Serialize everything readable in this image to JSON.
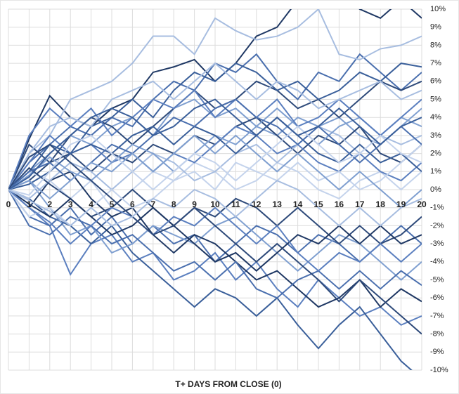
{
  "chart_data": {
    "type": "line",
    "x_label": "T+ DAYS FROM CLOSE (0)",
    "x": [
      0,
      1,
      2,
      3,
      4,
      5,
      6,
      7,
      8,
      9,
      10,
      11,
      12,
      13,
      14,
      15,
      16,
      17,
      18,
      19,
      20
    ],
    "xlim": [
      0,
      20
    ],
    "xticks": [
      0,
      1,
      2,
      3,
      4,
      5,
      6,
      7,
      8,
      9,
      10,
      11,
      12,
      13,
      14,
      15,
      16,
      17,
      18,
      19,
      20
    ],
    "ylim": [
      -10,
      10
    ],
    "yticks": [
      {
        "value": 10,
        "label": "10%"
      },
      {
        "value": 9,
        "label": "9%"
      },
      {
        "value": 8,
        "label": "8%"
      },
      {
        "value": 7,
        "label": "7%"
      },
      {
        "value": 6,
        "label": "6%"
      },
      {
        "value": 5,
        "label": "5%"
      },
      {
        "value": 4,
        "label": "4%"
      },
      {
        "value": 3,
        "label": "3%"
      },
      {
        "value": 2,
        "label": "2%"
      },
      {
        "value": 1,
        "label": "1%"
      },
      {
        "value": 0,
        "label": "0%"
      },
      {
        "value": -1,
        "label": "-1%"
      },
      {
        "value": -2,
        "label": "-2%"
      },
      {
        "value": -3,
        "label": "-3%"
      },
      {
        "value": -4,
        "label": "-4%"
      },
      {
        "value": -5,
        "label": "-5%"
      },
      {
        "value": -6,
        "label": "-6%"
      },
      {
        "value": -7,
        "label": "-7%"
      },
      {
        "value": -8,
        "label": "-8%"
      },
      {
        "value": -9,
        "label": "-9%"
      },
      {
        "value": -10,
        "label": "-10%"
      }
    ],
    "grid": true,
    "series": [
      {
        "color": "#1f3864",
        "values": [
          0,
          2.8,
          5.2,
          4,
          3.5,
          4.5,
          5,
          6.5,
          6.8,
          7.2,
          6,
          7,
          8.5,
          9,
          10.5,
          12,
          11,
          10,
          9.5,
          10.5,
          9.5
        ]
      },
      {
        "color": "#4a6fae",
        "values": [
          0,
          1.5,
          2.5,
          3.5,
          3,
          4,
          3.5,
          5,
          6,
          5.5,
          7,
          6.5,
          7.5,
          6,
          5,
          6.5,
          6,
          7.5,
          6.5,
          5.5,
          6.5
        ]
      },
      {
        "color": "#7f9fd0",
        "values": [
          0,
          1,
          2,
          3,
          2.5,
          3.5,
          4,
          3,
          4.5,
          5,
          4,
          4.5,
          3.5,
          3,
          4,
          3.5,
          4,
          3,
          2.5,
          3.5,
          4.5
        ]
      },
      {
        "color": "#a7bde0",
        "values": [
          0,
          2,
          3,
          5,
          5.5,
          6,
          7,
          8.5,
          8.5,
          7.5,
          9.5,
          8.8,
          8.3,
          8.5,
          9,
          10,
          7.5,
          7.2,
          7.8,
          8,
          8.5
        ]
      },
      {
        "color": "#2e4a7a",
        "values": [
          0,
          0.5,
          1.5,
          2,
          1,
          2,
          1.5,
          2.5,
          2,
          3,
          2.5,
          3.5,
          4,
          3,
          2,
          3,
          2.5,
          3.5,
          2,
          1.5,
          2.5
        ]
      },
      {
        "color": "#5b7fbf",
        "values": [
          0,
          -1,
          -2,
          -4.7,
          -3,
          -2.5,
          -4,
          -3.5,
          -5,
          -4.5,
          -3.5,
          -5,
          -4,
          -5.5,
          -6.5,
          -5,
          -6,
          -7,
          -6.5,
          -7.5,
          -7
        ]
      },
      {
        "color": "#3a5f9a",
        "values": [
          0,
          -0.5,
          -1.5,
          -2,
          -3,
          -2,
          -3.5,
          -4.5,
          -5.5,
          -6.5,
          -5.5,
          -6,
          -7,
          -6,
          -7.5,
          -8.8,
          -7.5,
          -6.5,
          -8,
          -9.5,
          -10.5
        ]
      },
      {
        "color": "#c4d3ec",
        "values": [
          0,
          1,
          0.5,
          -0.5,
          0.5,
          -1,
          0,
          1,
          0.5,
          1.5,
          1,
          0,
          0.5,
          1.5,
          1,
          0,
          -0.5,
          0.5,
          1,
          0,
          1
        ]
      },
      {
        "color": "#4a6fae",
        "values": [
          0,
          -1.5,
          -2,
          -1,
          -2.5,
          -1.5,
          -3,
          -2,
          -3,
          -2.5,
          -4,
          -3,
          -2,
          -2.5,
          -3.5,
          -2.5,
          -3,
          -4,
          -3,
          -2,
          -3
        ]
      },
      {
        "color": "#2e4a7a",
        "values": [
          0,
          2.5,
          1.5,
          3,
          4,
          3.5,
          2.5,
          3.5,
          4.5,
          5.5,
          4.5,
          5,
          6,
          5.5,
          4.5,
          5,
          4,
          5,
          6,
          5.5,
          6
        ]
      },
      {
        "color": "#7f9fd0",
        "values": [
          0,
          0.5,
          -1,
          -2.5,
          -2,
          -3.5,
          -3,
          -2,
          -2.5,
          -3,
          -2,
          -1.5,
          -2.5,
          -3.5,
          -4.5,
          -3.5,
          -2.5,
          -3,
          -4,
          -5,
          -4
        ]
      },
      {
        "color": "#5b7fbf",
        "values": [
          0,
          1.5,
          3,
          2,
          2.5,
          1.5,
          2,
          1,
          2,
          1.5,
          2.5,
          3.5,
          3,
          2,
          2.5,
          1.5,
          1,
          2,
          1,
          0.5,
          1.5
        ]
      },
      {
        "color": "#1f3864",
        "values": [
          0,
          -1,
          0.5,
          1,
          -0.5,
          -1.5,
          -1,
          -2.5,
          -3.5,
          -2.5,
          -3,
          -4,
          -5,
          -4.5,
          -5.5,
          -6.5,
          -6,
          -5,
          -6.5,
          -5.5,
          -6.2
        ]
      },
      {
        "color": "#3a5f9a",
        "values": [
          0,
          1,
          2.5,
          2,
          3.5,
          4,
          5,
          4,
          5.5,
          6.5,
          6,
          7,
          6.5,
          5.5,
          6,
          5,
          5.5,
          6.5,
          6,
          7,
          6.8
        ]
      },
      {
        "color": "#a7bde0",
        "values": [
          0,
          -0.5,
          0.5,
          1.5,
          1,
          0,
          1,
          2,
          1.5,
          0.5,
          1,
          2,
          2.5,
          1.5,
          2.5,
          3.5,
          3,
          2,
          3,
          2.5,
          3
        ]
      },
      {
        "color": "#4a6fae",
        "values": [
          0,
          -2,
          -2.5,
          -1.5,
          -2,
          -3,
          -2.5,
          -3.5,
          -4.5,
          -4,
          -5,
          -4,
          -5.5,
          -6,
          -5,
          -4.5,
          -5.5,
          -4.5,
          -5.5,
          -4.5,
          -5.3
        ]
      },
      {
        "color": "#7f9fd0",
        "values": [
          0,
          0.8,
          1.8,
          1,
          0.5,
          1.5,
          2.5,
          2,
          1,
          2,
          3,
          2.5,
          3.5,
          4.5,
          3.5,
          2.5,
          3.5,
          4,
          3,
          4,
          3.5
        ]
      },
      {
        "color": "#2e4a7a",
        "values": [
          0,
          1.2,
          0.3,
          -0.5,
          -1.5,
          -1,
          0,
          -1,
          -2,
          -1,
          -1.5,
          -0.5,
          -1,
          -2,
          -1,
          -2,
          -3,
          -2,
          -3,
          -2.5,
          -1.5
        ]
      },
      {
        "color": "#5b7fbf",
        "values": [
          0,
          3,
          4.5,
          3.5,
          4.5,
          3,
          4,
          5,
          4.5,
          5.5,
          4,
          5,
          4,
          5,
          3.5,
          4,
          5,
          4,
          3,
          4,
          5
        ]
      },
      {
        "color": "#c4d3ec",
        "values": [
          0,
          -1.5,
          -1,
          -2,
          -1,
          0,
          -1,
          -0.5,
          0.5,
          1,
          0,
          1.5,
          1,
          0.5,
          1.5,
          0.5,
          1,
          0,
          0.5,
          1.5,
          2.5
        ]
      },
      {
        "color": "#3a5f9a",
        "values": [
          0,
          0.3,
          1,
          2,
          2.5,
          2,
          3,
          3.5,
          2.5,
          3.5,
          3,
          2,
          3,
          4,
          3,
          2,
          1.5,
          2.5,
          1.5,
          2,
          1
        ]
      },
      {
        "color": "#1f3864",
        "values": [
          0,
          -0.8,
          -1.5,
          -0.5,
          -1.5,
          -2.5,
          -2,
          -1,
          -2,
          -3,
          -4,
          -3.5,
          -4.5,
          -3.5,
          -2.5,
          -3,
          -2,
          -3,
          -2,
          -3,
          -2.5
        ]
      },
      {
        "color": "#a7bde0",
        "values": [
          0,
          2,
          3.5,
          4,
          3.5,
          5,
          5.5,
          6,
          5,
          6,
          7,
          6,
          5,
          6,
          5.5,
          4.5,
          5,
          5.5,
          6,
          5,
          5.5
        ]
      },
      {
        "color": "#4a6fae",
        "values": [
          0,
          1,
          1.5,
          0.5,
          1.5,
          2.5,
          2,
          3,
          4,
          3.5,
          4.5,
          5,
          4,
          3.5,
          2.5,
          3.5,
          2.5,
          1.5,
          2.5,
          3.5,
          2.5
        ]
      },
      {
        "color": "#5b7fbf",
        "values": [
          0,
          -1,
          -1.8,
          -3,
          -2,
          -1,
          -1.5,
          -2.5,
          -1.5,
          -2,
          -1,
          -2,
          -3,
          -2,
          -3.5,
          -4.5,
          -3.5,
          -4,
          -3,
          -4,
          -3
        ]
      },
      {
        "color": "#7f9fd0",
        "values": [
          0,
          0.5,
          -0.5,
          0.5,
          1.5,
          1,
          2,
          1,
          2,
          3,
          2,
          3,
          2,
          1,
          2,
          1,
          0,
          1,
          0,
          -1,
          0
        ]
      },
      {
        "color": "#2e4a7a",
        "values": [
          0,
          1.8,
          2.5,
          1.5,
          0.5,
          -0.5,
          -1.5,
          -2.5,
          -2,
          -1,
          -2,
          -3,
          -4,
          -3,
          -4,
          -5,
          -6.2,
          -5,
          -6,
          -7,
          -8
        ]
      },
      {
        "color": "#c4d3ec",
        "values": [
          0,
          -0.3,
          1,
          2.5,
          3,
          2,
          1,
          0,
          1,
          2,
          1.5,
          0.5,
          1.5,
          2.5,
          3.5,
          2.5,
          1.5,
          2,
          3,
          2,
          1.5
        ]
      },
      {
        "color": "#3a5f9a",
        "values": [
          0,
          0.7,
          2,
          3,
          4,
          4.5,
          4,
          3,
          3.5,
          4.5,
          5,
          4,
          3,
          4,
          3,
          3.5,
          4.5,
          3.5,
          2.5,
          3.5,
          4
        ]
      },
      {
        "color": "#a7bde0",
        "values": [
          0,
          -0.6,
          -1.2,
          -2,
          -1,
          -2,
          -1.5,
          -0.5,
          -1,
          0,
          -0.5,
          -1.5,
          -0.5,
          0.5,
          0,
          -1,
          -2,
          -1,
          -2,
          -1,
          -0.5
        ]
      }
    ]
  }
}
